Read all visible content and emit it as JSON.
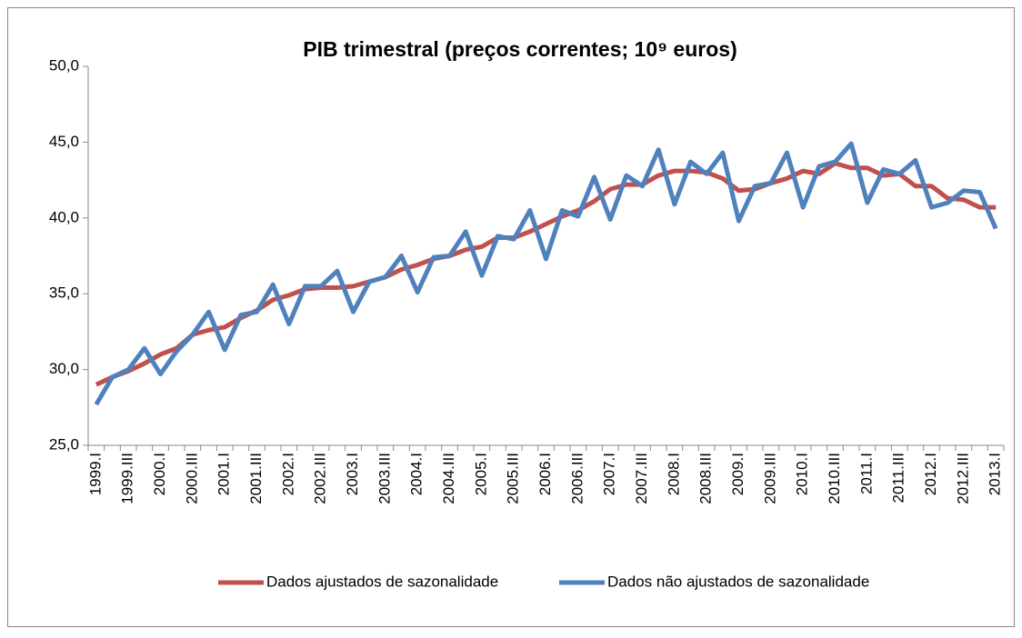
{
  "chart_data": {
    "type": "line",
    "title": "PIB trimestral (preços correntes; 10⁹ euros)",
    "categories": [
      "1999.I",
      null,
      "1999.III",
      null,
      "2000.I",
      null,
      "2000.III",
      null,
      "2001.I",
      null,
      "2001.III",
      null,
      "2002.I",
      null,
      "2002.III",
      null,
      "2003.I",
      null,
      "2003.III",
      null,
      "2004.I",
      null,
      "2004.III",
      null,
      "2005.I",
      null,
      "2005.III",
      null,
      "2006.I",
      null,
      "2006.III",
      null,
      "2007.I",
      null,
      "2007.III",
      null,
      "2008.I",
      null,
      "2008.III",
      null,
      "2009.I",
      null,
      "2009.III",
      null,
      "2010.I",
      null,
      "2010.III",
      null,
      "2011.I",
      null,
      "2011.III",
      null,
      "2012.I",
      null,
      "2012.III",
      null,
      "2013.I"
    ],
    "series": [
      {
        "name": "Dados ajustados de sazonalidade",
        "color": "#c0504d",
        "values": [
          29.0,
          29.5,
          29.9,
          30.4,
          31.0,
          31.4,
          32.3,
          32.6,
          32.8,
          33.4,
          33.9,
          34.6,
          34.9,
          35.3,
          35.4,
          35.4,
          35.5,
          35.8,
          36.1,
          36.6,
          36.9,
          37.3,
          37.5,
          37.9,
          38.1,
          38.7,
          38.7,
          39.1,
          39.6,
          40.1,
          40.5,
          41.1,
          41.9,
          42.2,
          42.2,
          42.8,
          43.1,
          43.1,
          43.0,
          42.6,
          41.8,
          41.9,
          42.3,
          42.6,
          43.1,
          42.9,
          43.6,
          43.3,
          43.3,
          42.8,
          42.9,
          42.1,
          42.1,
          41.3,
          41.2,
          40.7,
          40.7
        ]
      },
      {
        "name": "Dados não ajustados de sazonalidade",
        "color": "#4f81bd",
        "values": [
          27.7,
          29.5,
          30.0,
          31.4,
          29.7,
          31.2,
          32.3,
          33.8,
          31.3,
          33.6,
          33.8,
          35.6,
          33.0,
          35.5,
          35.5,
          36.5,
          33.8,
          35.8,
          36.1,
          37.5,
          35.1,
          37.4,
          37.5,
          39.1,
          36.2,
          38.8,
          38.6,
          40.5,
          37.3,
          40.5,
          40.1,
          42.7,
          39.9,
          42.8,
          42.1,
          44.5,
          40.9,
          43.7,
          42.9,
          44.3,
          39.8,
          42.1,
          42.3,
          44.3,
          40.7,
          43.4,
          43.7,
          44.9,
          41.0,
          43.2,
          42.9,
          43.8,
          40.7,
          41.0,
          41.8,
          41.7,
          39.3
        ]
      }
    ],
    "ylim": [
      25,
      50
    ],
    "yticks": [
      {
        "value": 25,
        "label": "25,0"
      },
      {
        "value": 30,
        "label": "30,0"
      },
      {
        "value": 35,
        "label": "35,0"
      },
      {
        "value": 40,
        "label": "40,0"
      },
      {
        "value": 45,
        "label": "45,0"
      },
      {
        "value": 50,
        "label": "50,0"
      }
    ],
    "grid": false,
    "legend": "bottom"
  }
}
